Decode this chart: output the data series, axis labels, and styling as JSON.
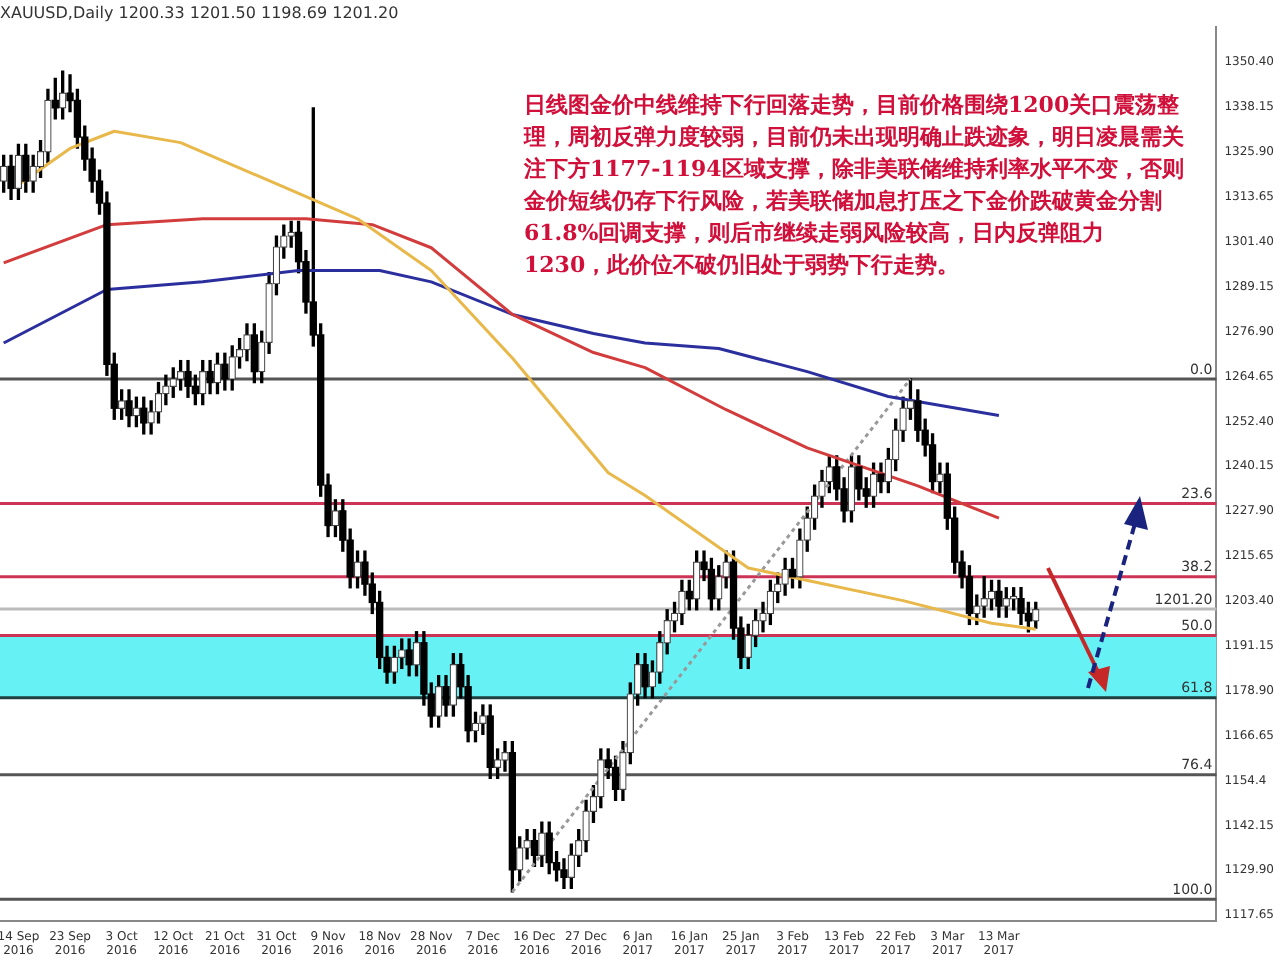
{
  "chart_data": {
    "type": "candlestick",
    "title": "XAUUSD,Daily 1200.33 1201.50 1198.69 1201.20",
    "annotations": [
      "日线图金价中线维持下行回落走势，目前价格围绕1200关口震荡整理，周初反弹力度较弱，目前仍未出现明确止跌迹象，明日凌晨需关注下方1177-1194区域支撑，除非美联储维持利率水平不变，否则金价短线仍存下行风险，若美联储加息打压之下金价跌破黄金分割61.8%回调支撑，则后市继续走弱风险较高，日内反弹阻力1230，此价位不破仍旧处于弱势下行走势。",
      {
        "text": "0.0",
        "y": 1264
      },
      {
        "text": "23.6",
        "y": 1230
      },
      {
        "text": "38.2",
        "y": 1210
      },
      {
        "text": "50.0",
        "y": 1194
      },
      {
        "text": "61.8",
        "y": 1177
      },
      {
        "text": "76.4",
        "y": 1156
      },
      {
        "text": "100.0",
        "y": 1122
      }
    ],
    "categories": [
      null,
      null,
      "14 Sep 2016",
      null,
      null,
      null,
      null,
      null,
      null,
      "23 Sep 2016",
      null,
      null,
      null,
      null,
      null,
      null,
      "3 Oct 2016",
      null,
      null,
      null,
      null,
      null,
      null,
      "12 Oct 2016",
      null,
      null,
      null,
      null,
      null,
      null,
      "21 Oct 2016",
      null,
      null,
      null,
      null,
      null,
      null,
      "31 Oct 2016",
      null,
      null,
      null,
      null,
      null,
      null,
      "9 Nov 2016",
      null,
      null,
      null,
      null,
      null,
      null,
      "18 Nov 2016",
      null,
      null,
      null,
      null,
      null,
      null,
      "28 Nov 2016",
      null,
      null,
      null,
      null,
      null,
      null,
      "7 Dec 2016",
      null,
      null,
      null,
      null,
      null,
      null,
      "16 Dec 2016",
      null,
      null,
      null,
      null,
      null,
      null,
      "27 Dec 2016",
      null,
      null,
      null,
      null,
      null,
      null,
      "6 Jan 2017",
      null,
      null,
      null,
      null,
      null,
      null,
      "16 Jan 2017",
      null,
      null,
      null,
      null,
      null,
      null,
      "25 Jan 2017",
      null,
      null,
      null,
      null,
      null,
      null,
      "3 Feb 2017",
      null,
      null,
      null,
      null,
      null,
      null,
      "13 Feb 2017",
      null,
      null,
      null,
      null,
      null,
      null,
      "22 Feb 2017",
      null,
      null,
      null,
      null,
      null,
      null,
      "3 Mar 2017",
      null,
      null,
      null,
      null,
      null,
      null,
      "13 Mar 2017",
      null,
      null,
      null,
      null,
      null,
      null,
      null,
      null,
      null,
      null,
      null,
      null,
      null,
      null,
      null,
      null,
      null,
      null,
      null,
      null,
      null,
      null,
      null,
      null,
      null,
      null,
      null,
      null,
      null
    ],
    "ohlc": [
      [
        1318,
        1325,
        1315,
        1322
      ],
      [
        1322,
        1325,
        1313,
        1316
      ],
      [
        1316,
        1328,
        1313,
        1325
      ],
      [
        1325,
        1328,
        1315,
        1318
      ],
      [
        1318,
        1325,
        1315,
        1322
      ],
      [
        1322,
        1329,
        1319,
        1326
      ],
      [
        1326,
        1343,
        1323,
        1340
      ],
      [
        1340,
        1346,
        1335,
        1338
      ],
      [
        1338,
        1348,
        1335,
        1342
      ],
      [
        1342,
        1347,
        1337,
        1340
      ],
      [
        1340,
        1343,
        1327,
        1330
      ],
      [
        1330,
        1333,
        1321,
        1324
      ],
      [
        1324,
        1327,
        1315,
        1318
      ],
      [
        1318,
        1321,
        1309,
        1312
      ],
      [
        1312,
        1315,
        1265,
        1268
      ],
      [
        1268,
        1271,
        1253,
        1256
      ],
      [
        1256,
        1261,
        1253,
        1258
      ],
      [
        1258,
        1261,
        1251,
        1254
      ],
      [
        1254,
        1259,
        1251,
        1256
      ],
      [
        1256,
        1259,
        1249,
        1252
      ],
      [
        1252,
        1258,
        1249,
        1255
      ],
      [
        1255,
        1263,
        1252,
        1260
      ],
      [
        1260,
        1265,
        1257,
        1262
      ],
      [
        1262,
        1267,
        1259,
        1264
      ],
      [
        1264,
        1269,
        1261,
        1266
      ],
      [
        1266,
        1269,
        1259,
        1262
      ],
      [
        1262,
        1265,
        1257,
        1260
      ],
      [
        1260,
        1269,
        1257,
        1266
      ],
      [
        1266,
        1269,
        1260,
        1263
      ],
      [
        1263,
        1271,
        1260,
        1268
      ],
      [
        1268,
        1271,
        1261,
        1264
      ],
      [
        1264,
        1273,
        1261,
        1270
      ],
      [
        1270,
        1275,
        1267,
        1272
      ],
      [
        1272,
        1279,
        1269,
        1276
      ],
      [
        1276,
        1279,
        1263,
        1266
      ],
      [
        1266,
        1277,
        1263,
        1274
      ],
      [
        1274,
        1293,
        1271,
        1290
      ],
      [
        1290,
        1303,
        1287,
        1300
      ],
      [
        1300,
        1306,
        1297,
        1303
      ],
      [
        1303,
        1307,
        1300,
        1304
      ],
      [
        1304,
        1307,
        1293,
        1296
      ],
      [
        1296,
        1299,
        1282,
        1285
      ],
      [
        1285,
        1338,
        1273,
        1276
      ],
      [
        1276,
        1279,
        1232,
        1235
      ],
      [
        1235,
        1238,
        1221,
        1224
      ],
      [
        1224,
        1231,
        1221,
        1228
      ],
      [
        1228,
        1231,
        1217,
        1220
      ],
      [
        1220,
        1223,
        1207,
        1210
      ],
      [
        1210,
        1217,
        1207,
        1214
      ],
      [
        1214,
        1217,
        1205,
        1208
      ],
      [
        1208,
        1211,
        1200,
        1203
      ],
      [
        1203,
        1206,
        1185,
        1188
      ],
      [
        1188,
        1191,
        1181,
        1184
      ],
      [
        1184,
        1191,
        1181,
        1188
      ],
      [
        1188,
        1193,
        1185,
        1190
      ],
      [
        1190,
        1193,
        1183,
        1186
      ],
      [
        1186,
        1195,
        1183,
        1192
      ],
      [
        1192,
        1195,
        1175,
        1178
      ],
      [
        1178,
        1181,
        1169,
        1172
      ],
      [
        1172,
        1183,
        1169,
        1180
      ],
      [
        1180,
        1183,
        1172,
        1175
      ],
      [
        1175,
        1189,
        1172,
        1186
      ],
      [
        1186,
        1189,
        1177,
        1180
      ],
      [
        1180,
        1183,
        1165,
        1168
      ],
      [
        1168,
        1173,
        1165,
        1170
      ],
      [
        1170,
        1175,
        1167,
        1172
      ],
      [
        1172,
        1175,
        1155,
        1158
      ],
      [
        1158,
        1163,
        1155,
        1160
      ],
      [
        1160,
        1165,
        1157,
        1162
      ],
      [
        1162,
        1165,
        1124,
        1130
      ],
      [
        1130,
        1139,
        1127,
        1136
      ],
      [
        1136,
        1141,
        1133,
        1138
      ],
      [
        1138,
        1141,
        1131,
        1134
      ],
      [
        1134,
        1143,
        1131,
        1140
      ],
      [
        1140,
        1143,
        1129,
        1132
      ],
      [
        1132,
        1135,
        1127,
        1130
      ],
      [
        1130,
        1133,
        1125,
        1128
      ],
      [
        1128,
        1137,
        1125,
        1134
      ],
      [
        1134,
        1141,
        1131,
        1138
      ],
      [
        1138,
        1149,
        1135,
        1146
      ],
      [
        1146,
        1153,
        1143,
        1150
      ],
      [
        1150,
        1163,
        1147,
        1160
      ],
      [
        1160,
        1163,
        1155,
        1158
      ],
      [
        1158,
        1161,
        1149,
        1152
      ],
      [
        1152,
        1165,
        1149,
        1162
      ],
      [
        1162,
        1181,
        1159,
        1178
      ],
      [
        1178,
        1189,
        1175,
        1186
      ],
      [
        1186,
        1189,
        1177,
        1180
      ],
      [
        1180,
        1187,
        1177,
        1184
      ],
      [
        1184,
        1195,
        1181,
        1192
      ],
      [
        1192,
        1201,
        1189,
        1198
      ],
      [
        1198,
        1203,
        1195,
        1200
      ],
      [
        1200,
        1209,
        1197,
        1206
      ],
      [
        1206,
        1209,
        1201,
        1204
      ],
      [
        1204,
        1217,
        1201,
        1214
      ],
      [
        1214,
        1217,
        1209,
        1212
      ],
      [
        1212,
        1215,
        1201,
        1204
      ],
      [
        1204,
        1213,
        1201,
        1210
      ],
      [
        1210,
        1217,
        1207,
        1214
      ],
      [
        1214,
        1217,
        1193,
        1196
      ],
      [
        1196,
        1199,
        1185,
        1188
      ],
      [
        1188,
        1197,
        1185,
        1194
      ],
      [
        1194,
        1201,
        1191,
        1198
      ],
      [
        1198,
        1203,
        1195,
        1200
      ],
      [
        1200,
        1209,
        1197,
        1206
      ],
      [
        1206,
        1211,
        1203,
        1208
      ],
      [
        1208,
        1215,
        1205,
        1212
      ],
      [
        1212,
        1215,
        1207,
        1210
      ],
      [
        1210,
        1223,
        1207,
        1220
      ],
      [
        1220,
        1229,
        1217,
        1226
      ],
      [
        1226,
        1235,
        1223,
        1232
      ],
      [
        1232,
        1239,
        1229,
        1236
      ],
      [
        1236,
        1243,
        1233,
        1240
      ],
      [
        1240,
        1243,
        1231,
        1234
      ],
      [
        1234,
        1237,
        1225,
        1228
      ],
      [
        1228,
        1243,
        1225,
        1240
      ],
      [
        1240,
        1243,
        1231,
        1234
      ],
      [
        1234,
        1237,
        1229,
        1232
      ],
      [
        1232,
        1241,
        1229,
        1238
      ],
      [
        1238,
        1241,
        1233,
        1236
      ],
      [
        1236,
        1245,
        1233,
        1242
      ],
      [
        1242,
        1253,
        1239,
        1250
      ],
      [
        1250,
        1259,
        1247,
        1256
      ],
      [
        1256,
        1264,
        1253,
        1258
      ],
      [
        1258,
        1261,
        1247,
        1250
      ],
      [
        1250,
        1253,
        1243,
        1246
      ],
      [
        1246,
        1249,
        1233,
        1236
      ],
      [
        1236,
        1241,
        1233,
        1238
      ],
      [
        1238,
        1241,
        1223,
        1226
      ],
      [
        1226,
        1229,
        1211,
        1214
      ],
      [
        1214,
        1217,
        1207,
        1210
      ],
      [
        1210,
        1213,
        1197,
        1200
      ],
      [
        1200,
        1205,
        1197,
        1202
      ],
      [
        1202,
        1210,
        1199,
        1204
      ],
      [
        1204,
        1209,
        1201,
        1206
      ],
      [
        1206,
        1209,
        1199,
        1202
      ],
      [
        1202,
        1207,
        1199,
        1204
      ],
      [
        1204,
        1207,
        1201,
        1204
      ],
      [
        1204,
        1207,
        1197,
        1200
      ],
      [
        1200,
        1203,
        1195,
        1198
      ],
      [
        1198,
        1203,
        1196,
        1201
      ],
      null,
      null,
      null,
      null,
      null,
      null,
      null,
      null,
      null,
      null,
      null,
      null,
      null,
      null,
      null,
      null,
      null,
      null,
      null,
      null,
      null,
      null,
      null,
      null
    ],
    "series": [
      {
        "type": "line",
        "color": "#e8b84a",
        "values": [
          null,
          null,
          1317.0,
          null,
          null,
          null,
          null,
          null,
          null,
          1326.9,
          null,
          null,
          null,
          null,
          null,
          1331.6,
          null,
          null,
          null,
          null,
          null,
          null,
          null,
          null,
          1328.5,
          null,
          null,
          null,
          null,
          null,
          null,
          null,
          null,
          null,
          null,
          null,
          1318.1,
          null,
          null,
          null,
          null,
          null,
          null,
          null,
          null,
          null,
          null,
          null,
          1307.7,
          null,
          null,
          null,
          null,
          null,
          null,
          null,
          null,
          null,
          1293.6,
          null,
          null,
          null,
          null,
          null,
          null,
          null,
          null,
          null,
          null,
          1269.7,
          null,
          null,
          null,
          null,
          null,
          null,
          null,
          null,
          null,
          null,
          null,
          null,
          1238.4,
          null,
          null,
          null,
          null,
          1232.2,
          null,
          null,
          null,
          null,
          null,
          null,
          null,
          null,
          null,
          null,
          null,
          null,
          null,
          1212.4,
          null,
          null,
          null,
          null,
          null,
          null,
          null,
          null,
          null,
          null,
          null,
          null,
          null,
          null,
          null,
          null,
          null,
          null,
          null,
          null,
          1203.5,
          null,
          null,
          null,
          null,
          null,
          null,
          null,
          null,
          null,
          null,
          null,
          1197.3,
          null,
          null,
          null,
          null,
          null,
          1195.7,
          null,
          null,
          null,
          null,
          null,
          null,
          null,
          null,
          null,
          null,
          null,
          null,
          null,
          null,
          null,
          null,
          null,
          null,
          null,
          null,
          null,
          null,
          null,
          null
        ]
      },
      {
        "type": "line",
        "color": "#d23c3c",
        "values": [
          1295.7,
          null,
          null,
          null,
          null,
          null,
          null,
          null,
          null,
          null,
          null,
          null,
          null,
          null,
          1306.1,
          null,
          null,
          null,
          null,
          null,
          null,
          null,
          null,
          null,
          null,
          null,
          null,
          1307.7,
          null,
          null,
          null,
          null,
          null,
          null,
          null,
          null,
          null,
          null,
          null,
          null,
          null,
          1307.7,
          null,
          null,
          null,
          null,
          null,
          null,
          null,
          null,
          1306.1,
          null,
          null,
          null,
          null,
          null,
          null,
          null,
          1299.8,
          null,
          null,
          null,
          null,
          null,
          null,
          null,
          null,
          null,
          null,
          1281.6,
          null,
          null,
          null,
          null,
          null,
          null,
          null,
          null,
          null,
          null,
          1271.2,
          null,
          null,
          null,
          null,
          null,
          null,
          1267.1,
          null,
          null,
          null,
          null,
          null,
          null,
          null,
          null,
          null,
          null,
          1255.6,
          null,
          null,
          null,
          null,
          null,
          null,
          null,
          null,
          null,
          null,
          1245.2,
          null,
          null,
          null,
          null,
          null,
          null,
          null,
          null,
          null,
          null,
          null,
          null,
          null,
          null,
          1234.8,
          null,
          null,
          null,
          null,
          null,
          null,
          null,
          null,
          null,
          null,
          1226.0,
          null,
          null,
          null,
          null,
          null,
          null,
          null,
          null,
          null,
          null,
          null,
          null,
          null,
          null,
          null,
          null,
          null,
          null,
          null,
          null,
          null,
          null,
          null,
          null,
          null,
          null,
          null,
          null,
          null
        ]
      },
      {
        "type": "line",
        "color": "#2b2f9e",
        "values": [
          1273.8,
          null,
          null,
          null,
          null,
          null,
          null,
          null,
          null,
          null,
          null,
          null,
          null,
          null,
          1288.4,
          null,
          null,
          null,
          null,
          null,
          null,
          null,
          null,
          null,
          null,
          null,
          null,
          1290.5,
          null,
          null,
          null,
          null,
          null,
          null,
          null,
          null,
          null,
          null,
          null,
          null,
          1293.6,
          null,
          null,
          null,
          null,
          null,
          null,
          null,
          null,
          null,
          null,
          1293.6,
          null,
          null,
          null,
          null,
          null,
          null,
          1290.5,
          null,
          null,
          null,
          null,
          null,
          null,
          null,
          null,
          null,
          null,
          1281.6,
          null,
          null,
          null,
          null,
          null,
          null,
          null,
          null,
          null,
          null,
          1276.4,
          null,
          null,
          null,
          null,
          null,
          null,
          1273.8,
          null,
          null,
          null,
          null,
          null,
          null,
          null,
          null,
          null,
          1272.3,
          null,
          null,
          null,
          null,
          null,
          null,
          null,
          null,
          null,
          null,
          null,
          1266.0,
          null,
          null,
          null,
          null,
          null,
          null,
          null,
          null,
          null,
          null,
          1259.2,
          null,
          null,
          null,
          null,
          null,
          null,
          null,
          null,
          null,
          null,
          null,
          null,
          null,
          null,
          1254.0,
          null,
          null,
          null,
          null,
          null,
          null,
          null,
          null,
          null,
          null,
          null,
          null,
          null,
          null,
          null,
          null,
          null,
          null,
          null,
          null,
          null,
          null,
          null,
          null,
          null,
          null,
          null,
          null,
          null
        ]
      },
      {
        "type": "line",
        "color": "#999999",
        "line_style": "dotted",
        "values": [
          null,
          null,
          null,
          null,
          null,
          null,
          null,
          null,
          null,
          null,
          null,
          null,
          null,
          null,
          null,
          null,
          null,
          null,
          null,
          null,
          null,
          null,
          null,
          null,
          null,
          null,
          null,
          null,
          null,
          null,
          null,
          null,
          null,
          null,
          null,
          null,
          null,
          null,
          null,
          null,
          null,
          null,
          null,
          null,
          null,
          null,
          null,
          null,
          null,
          null,
          null,
          null,
          null,
          null,
          null,
          null,
          null,
          null,
          null,
          null,
          null,
          null,
          null,
          null,
          null,
          null,
          null,
          null,
          null,
          1124,
          null,
          null,
          null,
          null,
          null,
          null,
          null,
          null,
          null,
          null,
          null,
          null,
          null,
          null,
          null,
          null,
          null,
          null,
          null,
          null,
          null,
          null,
          null,
          null,
          null,
          null,
          null,
          null,
          null,
          null,
          null,
          null,
          null,
          null,
          null,
          null,
          null,
          null,
          null,
          null,
          null,
          null,
          null,
          null,
          null,
          null,
          null,
          null,
          null,
          null,
          null,
          null,
          null,
          1264,
          null,
          null,
          null,
          null,
          null,
          null,
          null,
          null,
          null,
          null,
          null,
          null,
          null,
          null,
          null,
          null,
          null,
          null,
          null,
          null,
          null,
          null,
          null,
          null,
          null,
          null,
          null,
          null,
          null,
          null,
          null,
          null,
          null,
          null,
          null,
          null,
          null,
          null,
          null,
          null,
          null
        ]
      }
    ],
    "ylim": [
      1116,
      1360
    ],
    "yticks": [
      1117.65,
      {
        "value": 1129.9,
        "label": "1129.90"
      },
      1142.15,
      1154.4,
      1166.65,
      {
        "value": 1178.9,
        "label": "1178.90"
      },
      1191.15,
      {
        "value": 1203.4,
        "label": "1203.40"
      },
      1215.65,
      {
        "value": 1227.9,
        "label": "1227.90"
      },
      1240.15,
      {
        "value": 1252.4,
        "label": "1252.40"
      },
      1264.65,
      {
        "value": 1276.9,
        "label": "1276.90"
      },
      1289.15,
      {
        "value": 1301.4,
        "label": "1301.40"
      },
      1313.65,
      {
        "value": 1325.9,
        "label": "1325.90"
      },
      1338.15,
      {
        "value": 1350.4,
        "label": "1350.40"
      }
    ],
    "ref_lines": [
      {
        "axis": "y",
        "value": 1264,
        "color": "#555555"
      },
      {
        "axis": "y",
        "value": 1230,
        "color": "#cc3355"
      },
      {
        "axis": "y",
        "value": 1210,
        "color": "#cc3355"
      },
      {
        "axis": "y",
        "value": 1194,
        "color": "#cc3355"
      },
      {
        "axis": "y",
        "value": 1177,
        "color": "#1f3f3f"
      },
      {
        "axis": "y",
        "value": 1156,
        "color": "#555555"
      },
      {
        "axis": "y",
        "value": 1122,
        "color": "#555555"
      },
      {
        "axis": "y",
        "value": 1201.2,
        "label": "1201.20",
        "color": "#bbbbbb"
      }
    ],
    "bands": [
      {
        "axis": "y",
        "from": 1177,
        "to": 1194,
        "color": "#66f2f5"
      }
    ],
    "grid": false,
    "legend": false,
    "marker": "none"
  }
}
